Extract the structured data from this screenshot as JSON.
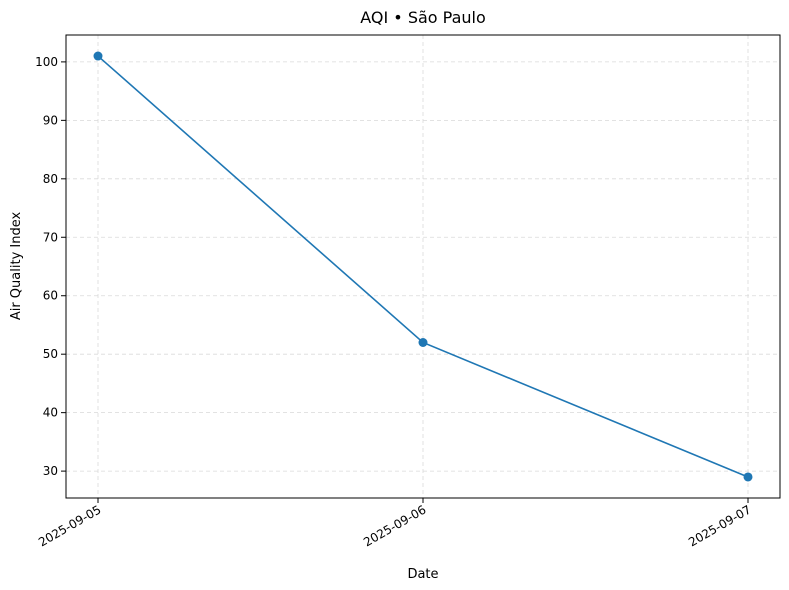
{
  "chart_data": {
    "type": "line",
    "title": "AQI • São Paulo",
    "xlabel": "Date",
    "ylabel": "Air Quality Index",
    "x": [
      "2025-09-05",
      "2025-09-06",
      "2025-09-07"
    ],
    "series": [
      {
        "values": [
          101,
          52,
          29
        ],
        "color": "#1f77b4"
      }
    ],
    "ylim": [
      25.4,
      104.6
    ],
    "yticks": [
      30,
      40,
      50,
      60,
      70,
      80,
      90,
      100
    ],
    "grid": true,
    "markers": "circle"
  }
}
